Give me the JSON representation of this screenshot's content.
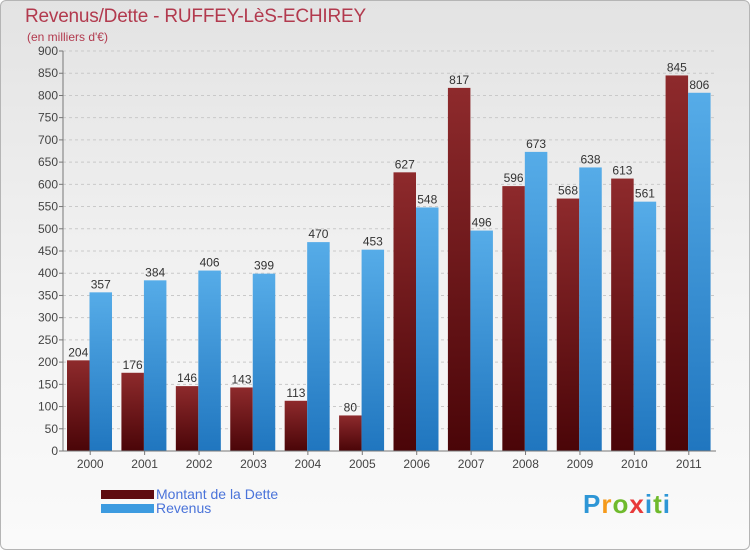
{
  "title": "Revenus/Dette - RUFFEY-LèS-ECHIREY",
  "subtitle": "(en milliers d'€)",
  "logo_text": "Proxiti",
  "colors": {
    "dette": "#7a1418",
    "revenus": "#3d9be0",
    "label_text": "#333333",
    "title": "#b23a4e",
    "legend_text": "#4a73d9"
  },
  "chart_data": {
    "type": "bar",
    "title": "Revenus/Dette - RUFFEY-LèS-ECHIREY",
    "subtitle": "(en milliers d'€)",
    "categories": [
      "2000",
      "2001",
      "2002",
      "2003",
      "2004",
      "2005",
      "2006",
      "2007",
      "2008",
      "2009",
      "2010",
      "2011"
    ],
    "series": [
      {
        "name": "Montant de la Dette",
        "values": [
          204,
          176,
          146,
          143,
          113,
          80,
          627,
          817,
          596,
          568,
          613,
          845
        ]
      },
      {
        "name": "Revenus",
        "values": [
          357,
          384,
          406,
          399,
          470,
          453,
          548,
          496,
          673,
          638,
          561,
          806
        ]
      }
    ],
    "ylim": [
      0,
      900
    ],
    "yticks": [
      0,
      50,
      100,
      150,
      200,
      250,
      300,
      350,
      400,
      450,
      500,
      550,
      600,
      650,
      700,
      750,
      800,
      850,
      900
    ],
    "grid": true,
    "legend_position": "bottom-left"
  }
}
